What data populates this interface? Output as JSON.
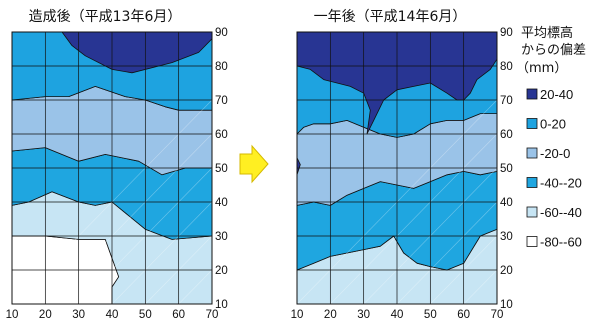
{
  "chart_data": [
    {
      "type": "heatmap",
      "subtype": "contour",
      "title": "造成後（平成13年6月）",
      "xlim": [
        10,
        70
      ],
      "ylim": [
        10,
        90
      ],
      "x_ticks": [
        "10",
        "20",
        "30",
        "40",
        "50",
        "60",
        "70"
      ],
      "y_ticks": [
        "90",
        "80",
        "70",
        "60",
        "50",
        "40",
        "30",
        "20",
        "10"
      ],
      "grid": true,
      "regions": [
        {
          "band": "-80--60",
          "points": [
            [
              10,
              30
            ],
            [
              20,
              30
            ],
            [
              30,
              29
            ],
            [
              38,
              29
            ],
            [
              42,
              18
            ],
            [
              40,
              15
            ],
            [
              40,
              10
            ],
            [
              10,
              10
            ]
          ]
        },
        {
          "band": "-60--40",
          "points": [
            [
              10,
              39
            ],
            [
              15,
              40
            ],
            [
              22,
              43
            ],
            [
              30,
              40
            ],
            [
              35,
              39
            ],
            [
              40,
              40
            ],
            [
              50,
              32
            ],
            [
              58,
              29
            ],
            [
              70,
              30
            ],
            [
              70,
              10
            ],
            [
              40,
              10
            ],
            [
              40,
              15
            ],
            [
              42,
              18
            ],
            [
              38,
              29
            ],
            [
              30,
              29
            ],
            [
              20,
              30
            ],
            [
              10,
              30
            ]
          ]
        },
        {
          "band": "-40--20",
          "points": [
            [
              10,
              55
            ],
            [
              20,
              56
            ],
            [
              30,
              52
            ],
            [
              38,
              54
            ],
            [
              48,
              52
            ],
            [
              55,
              48
            ],
            [
              62,
              50
            ],
            [
              70,
              50
            ],
            [
              70,
              30
            ],
            [
              58,
              29
            ],
            [
              50,
              32
            ],
            [
              40,
              40
            ],
            [
              35,
              39
            ],
            [
              30,
              40
            ],
            [
              22,
              43
            ],
            [
              15,
              40
            ],
            [
              10,
              39
            ]
          ]
        },
        {
          "band": "-20-0",
          "points": [
            [
              10,
              70
            ],
            [
              20,
              71
            ],
            [
              27,
              71
            ],
            [
              35,
              74
            ],
            [
              44,
              71
            ],
            [
              50,
              70
            ],
            [
              56,
              68
            ],
            [
              60,
              67
            ],
            [
              70,
              67
            ],
            [
              70,
              50
            ],
            [
              62,
              50
            ],
            [
              55,
              48
            ],
            [
              48,
              52
            ],
            [
              38,
              54
            ],
            [
              30,
              52
            ],
            [
              20,
              56
            ],
            [
              10,
              55
            ]
          ]
        },
        {
          "band": "0-20",
          "points": [
            [
              10,
              90
            ],
            [
              70,
              90
            ],
            [
              70,
              67
            ],
            [
              60,
              67
            ],
            [
              56,
              68
            ],
            [
              50,
              70
            ],
            [
              44,
              71
            ],
            [
              35,
              74
            ],
            [
              27,
              71
            ],
            [
              20,
              71
            ],
            [
              10,
              70
            ]
          ]
        },
        {
          "band": "20-40",
          "points": [
            [
              25,
              90
            ],
            [
              28,
              86
            ],
            [
              32,
              83
            ],
            [
              40,
              79
            ],
            [
              46,
              78
            ],
            [
              58,
              81
            ],
            [
              66,
              84
            ],
            [
              70,
              88
            ],
            [
              70,
              90
            ]
          ]
        }
      ]
    },
    {
      "type": "heatmap",
      "subtype": "contour",
      "title": "一年後（平成14年6月）",
      "xlim": [
        10,
        70
      ],
      "ylim": [
        10,
        90
      ],
      "x_ticks": [
        "10",
        "20",
        "30",
        "40",
        "50",
        "60",
        "70"
      ],
      "y_ticks": [
        "90",
        "80",
        "70",
        "60",
        "50",
        "40",
        "30",
        "20",
        "10"
      ],
      "grid": true,
      "regions": [
        {
          "band": "-80--60",
          "points": [
            [
              22,
              10
            ],
            [
              25,
              12
            ],
            [
              28,
              14
            ],
            [
              30,
              16
            ],
            [
              33,
              14
            ],
            [
              36,
              12
            ],
            [
              38,
              10
            ]
          ]
        },
        {
          "band": "-60--40",
          "points": [
            [
              10,
              10
            ],
            [
              10,
              20
            ],
            [
              15,
              22
            ],
            [
              20,
              24
            ],
            [
              25,
              25
            ],
            [
              30,
              26
            ],
            [
              35,
              27
            ],
            [
              39,
              30
            ],
            [
              42,
              25
            ],
            [
              46,
              22
            ],
            [
              50,
              21
            ],
            [
              55,
              20
            ],
            [
              60,
              22
            ],
            [
              65,
              30
            ],
            [
              70,
              32
            ],
            [
              70,
              10
            ]
          ]
        },
        {
          "band": "-40--20",
          "points": [
            [
              10,
              20
            ],
            [
              10,
              39
            ],
            [
              15,
              40
            ],
            [
              20,
              39
            ],
            [
              25,
              42
            ],
            [
              30,
              44
            ],
            [
              35,
              46
            ],
            [
              40,
              45
            ],
            [
              45,
              44
            ],
            [
              50,
              46
            ],
            [
              55,
              48
            ],
            [
              60,
              49
            ],
            [
              65,
              48
            ],
            [
              70,
              49
            ],
            [
              70,
              32
            ],
            [
              65,
              30
            ],
            [
              60,
              22
            ],
            [
              55,
              20
            ],
            [
              50,
              21
            ],
            [
              46,
              22
            ],
            [
              42,
              25
            ],
            [
              39,
              30
            ],
            [
              35,
              27
            ],
            [
              30,
              26
            ],
            [
              25,
              25
            ],
            [
              20,
              24
            ],
            [
              15,
              22
            ]
          ]
        },
        {
          "band": "-20-0",
          "points": [
            [
              10,
              39
            ],
            [
              10,
              60
            ],
            [
              12,
              62
            ],
            [
              15,
              63
            ],
            [
              20,
              63
            ],
            [
              25,
              64
            ],
            [
              30,
              62
            ],
            [
              35,
              60
            ],
            [
              40,
              59
            ],
            [
              45,
              60
            ],
            [
              50,
              63
            ],
            [
              55,
              64
            ],
            [
              60,
              64
            ],
            [
              65,
              66
            ],
            [
              70,
              66
            ],
            [
              70,
              49
            ],
            [
              65,
              48
            ],
            [
              60,
              49
            ],
            [
              55,
              48
            ],
            [
              50,
              46
            ],
            [
              45,
              44
            ],
            [
              40,
              45
            ],
            [
              35,
              46
            ],
            [
              30,
              44
            ],
            [
              25,
              42
            ],
            [
              20,
              39
            ],
            [
              15,
              40
            ]
          ]
        },
        {
          "band": "0-20",
          "points": [
            [
              10,
              60
            ],
            [
              10,
              90
            ],
            [
              70,
              90
            ],
            [
              70,
              66
            ],
            [
              65,
              66
            ],
            [
              60,
              64
            ],
            [
              55,
              64
            ],
            [
              50,
              63
            ],
            [
              45,
              60
            ],
            [
              40,
              59
            ],
            [
              35,
              60
            ],
            [
              30,
              62
            ],
            [
              25,
              64
            ],
            [
              20,
              63
            ],
            [
              15,
              63
            ],
            [
              12,
              62
            ]
          ]
        },
        {
          "band": "20-40",
          "points": [
            [
              10,
              90
            ],
            [
              10,
              80
            ],
            [
              14,
              79
            ],
            [
              18,
              76
            ],
            [
              22,
              75
            ],
            [
              26,
              74
            ],
            [
              30,
              72
            ],
            [
              32,
              67
            ],
            [
              31,
              60
            ],
            [
              33,
              64
            ],
            [
              36,
              70
            ],
            [
              40,
              73
            ],
            [
              45,
              74
            ],
            [
              50,
              75
            ],
            [
              55,
              72
            ],
            [
              58,
              70
            ],
            [
              60,
              70
            ],
            [
              62,
              72
            ],
            [
              64,
              76
            ],
            [
              68,
              79
            ],
            [
              70,
              82
            ],
            [
              70,
              90
            ]
          ]
        },
        {
          "band": "20-40",
          "points": [
            [
              10,
              48
            ],
            [
              11,
              51
            ],
            [
              10,
              53
            ]
          ]
        }
      ]
    }
  ],
  "legend": {
    "title_lines": [
      "平均標高",
      "からの偏差",
      "（mm）"
    ],
    "items": [
      {
        "label": "20-40",
        "color": "#283593"
      },
      {
        "label": "0-20",
        "color": "#1ea3e0"
      },
      {
        "label": "-20-0",
        "color": "#9ac3e8"
      },
      {
        "label": "-40--20",
        "color": "#1fa6e0"
      },
      {
        "label": "-60--40",
        "color": "#c7e5f4"
      },
      {
        "label": "-80--60",
        "color": "#ffffff"
      }
    ]
  },
  "arrow": {
    "color": "#ffef22",
    "stroke": "#d4b900"
  }
}
